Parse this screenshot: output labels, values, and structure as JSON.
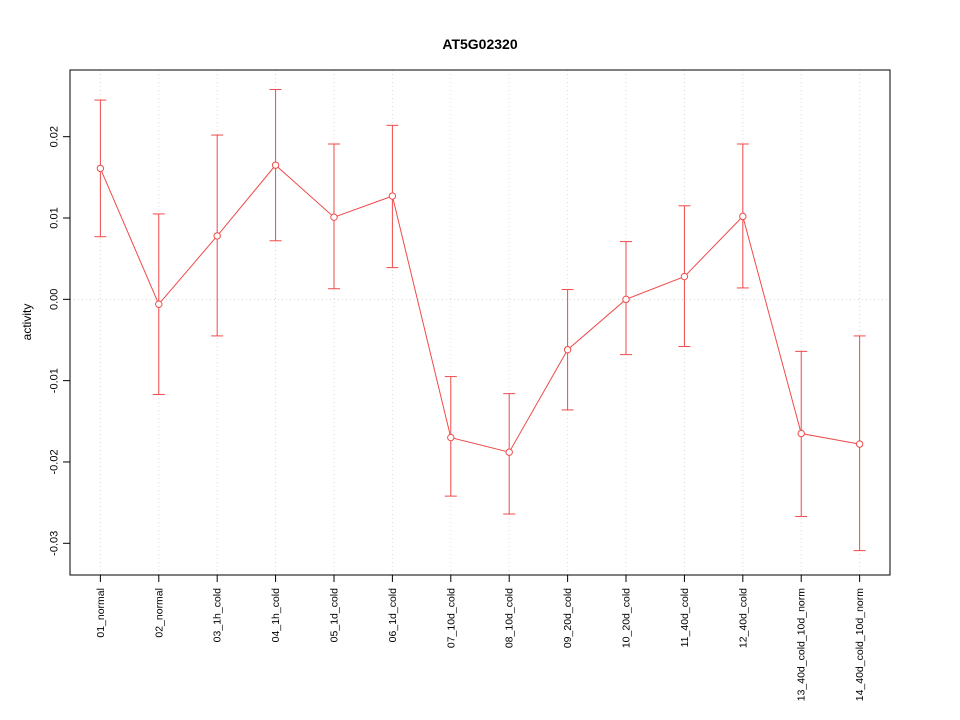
{
  "chart_data": {
    "type": "line",
    "title": "AT5G02320",
    "xlabel": "",
    "ylabel": "activity",
    "series_color": "#f04a4a",
    "grid_color": "#d8d8d8",
    "grid_style": "dotted",
    "marker": "open-circle",
    "legend": "none",
    "categories": [
      "01_normal",
      "02_normal",
      "03_1h_cold",
      "04_1h_cold",
      "05_1d_cold",
      "06_1d_cold",
      "07_10d_cold",
      "08_10d_cold",
      "09_20d_cold",
      "10_20d_cold",
      "11_40d_cold",
      "12_40d_cold",
      "13_40d_cold_10d_norm",
      "14_40d_cold_10d_norm"
    ],
    "values": [
      0.0161,
      -0.0006,
      0.0078,
      0.0165,
      0.0101,
      0.0127,
      -0.017,
      -0.0188,
      -0.0062,
      0.0,
      0.0028,
      0.0102,
      -0.0165,
      -0.0178
    ],
    "error_low": [
      0.0077,
      -0.0117,
      -0.0045,
      0.0072,
      0.0013,
      0.0039,
      -0.0242,
      -0.0264,
      -0.0136,
      -0.0068,
      -0.0058,
      0.0014,
      -0.0267,
      -0.0309
    ],
    "error_high": [
      0.0245,
      0.0105,
      0.0202,
      0.0258,
      0.0191,
      0.0214,
      -0.0095,
      -0.0116,
      0.0012,
      0.0071,
      0.0115,
      0.0191,
      -0.0064,
      -0.0045
    ],
    "yticks": [
      -0.03,
      -0.02,
      -0.01,
      0.0,
      0.01,
      0.02
    ],
    "ylim": [
      -0.0339,
      0.0282
    ],
    "zero_line": 0.0
  }
}
